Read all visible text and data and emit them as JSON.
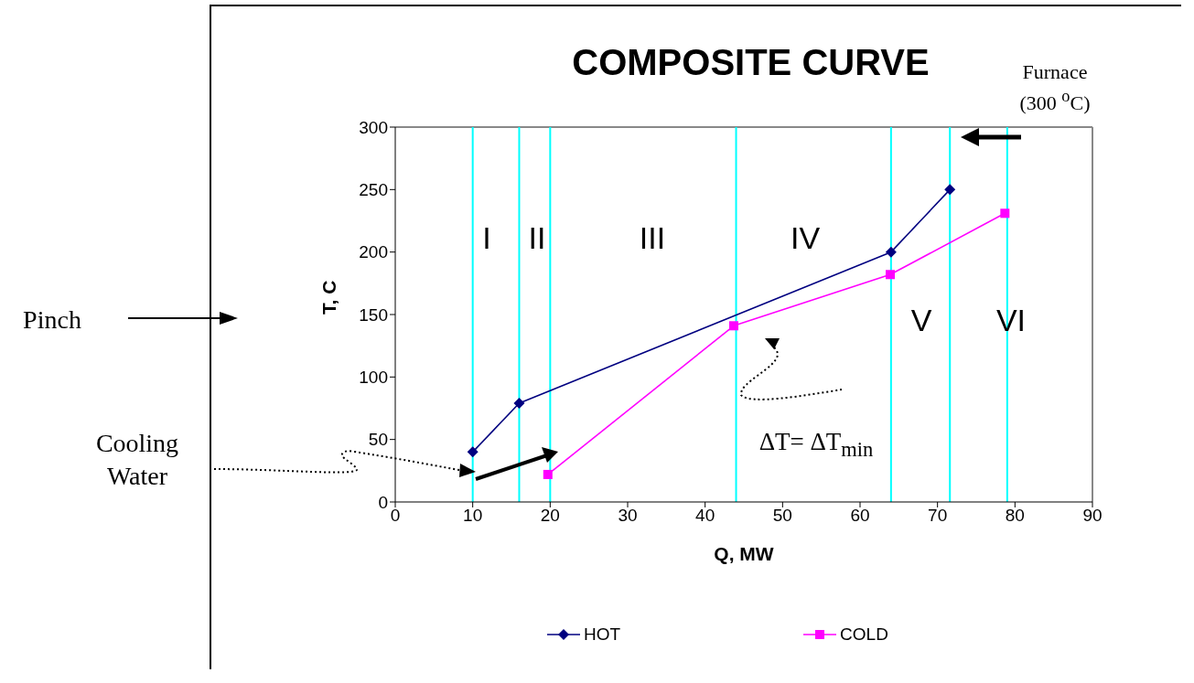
{
  "chart_data": {
    "type": "line",
    "title": "COMPOSITE CURVE",
    "xlabel": "Q, MW",
    "ylabel": "T, C",
    "xlim": [
      0,
      90
    ],
    "xticks": [
      0,
      10,
      20,
      30,
      40,
      50,
      60,
      70,
      80,
      90
    ],
    "ylim": [
      0,
      300
    ],
    "yticks": [
      0,
      50,
      100,
      150,
      200,
      250,
      300
    ],
    "grid": false,
    "legend": "bottom",
    "line_style": "solid",
    "series": [
      {
        "name": "HOT",
        "color": "#000080",
        "marker": "diamond",
        "x": [
          10,
          16,
          64,
          71.6
        ],
        "values": [
          40,
          79,
          200,
          250
        ]
      },
      {
        "name": "COLD",
        "color": "#ff00ff",
        "marker": "square",
        "x": [
          19.7,
          43.7,
          63.9,
          78.7
        ],
        "values": [
          22,
          141,
          182,
          231
        ]
      }
    ],
    "ref_lines": [
      {
        "axis": "x",
        "value": 10,
        "color": "#00ffff"
      },
      {
        "axis": "x",
        "value": 16,
        "color": "#00ffff"
      },
      {
        "axis": "x",
        "value": 20,
        "color": "#00ffff"
      },
      {
        "axis": "x",
        "value": 44,
        "color": "#00ffff"
      },
      {
        "axis": "x",
        "value": 64,
        "color": "#00ffff"
      },
      {
        "axis": "x",
        "value": 71.6,
        "color": "#00ffff"
      },
      {
        "axis": "x",
        "value": 79,
        "color": "#00ffff"
      }
    ],
    "annotations": [
      "I",
      "II",
      "III",
      "IV",
      "V",
      "VI",
      "ΔT= ΔT$_{min}$",
      "Pinch",
      "Cooling\nWater",
      "Furnace\n(300 $^{o}$C)"
    ]
  }
}
